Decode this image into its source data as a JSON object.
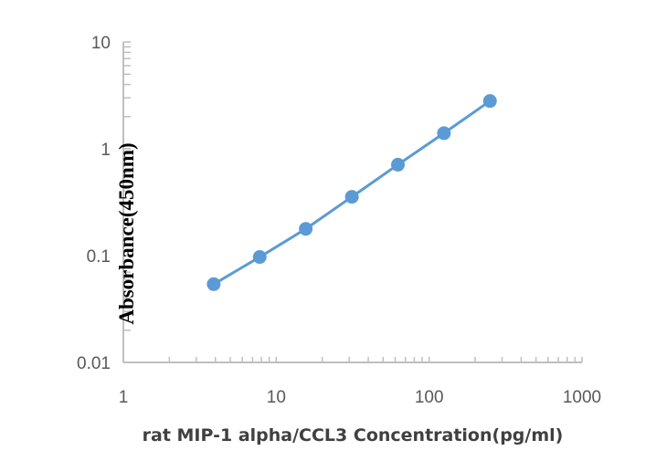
{
  "chart_data": {
    "type": "line",
    "title": "",
    "xlabel": "rat MIP-1 alpha/CCL3 Concentration(pg/ml)",
    "ylabel": "Absorbance(450nm)",
    "x_scale": "log",
    "y_scale": "log",
    "xlim": [
      1,
      1000
    ],
    "ylim": [
      0.01,
      10
    ],
    "x_ticks": [
      "1",
      "10",
      "100",
      "1000"
    ],
    "y_ticks": [
      "0.01",
      "0.1",
      "1",
      "10"
    ],
    "grid": false,
    "legend": "none",
    "series": [
      {
        "color": "#5b9bd5",
        "markers": true,
        "x": [
          3.9,
          7.8,
          15.6,
          31.25,
          62.5,
          125,
          250
        ],
        "y": [
          0.054,
          0.097,
          0.178,
          0.355,
          0.71,
          1.4,
          2.8
        ]
      }
    ]
  }
}
